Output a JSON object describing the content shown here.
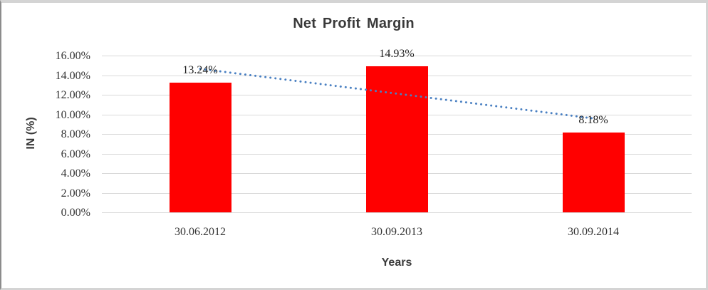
{
  "chart_data": {
    "type": "bar",
    "title": "Net Profit Margin",
    "xlabel": "Years",
    "ylabel": "IN (%)",
    "categories": [
      "30.06.2012",
      "30.09.2013",
      "30.09.2014"
    ],
    "values": [
      13.24,
      14.93,
      8.18
    ],
    "data_labels": [
      "13.24%",
      "14.93%",
      "8.18%"
    ],
    "ylim": [
      0,
      16
    ],
    "ytick_step": 2,
    "ytick_labels": [
      "0.00%",
      "2.00%",
      "4.00%",
      "6.00%",
      "8.00%",
      "10.00%",
      "12.00%",
      "14.00%",
      "16.00%"
    ],
    "grid": true,
    "legend": "none",
    "colors": {
      "bar": "#FF0000",
      "trendline": "#4A80C2",
      "gridline": "#D9D9D9",
      "title_text": "#3A3A3A",
      "axis_title_text": "#3A3A3A",
      "tick_text": "#333333",
      "data_label_text": "#1F1F1F",
      "background": "#FFFFFF"
    },
    "trendline": {
      "type": "linear",
      "style": "dotted"
    }
  }
}
